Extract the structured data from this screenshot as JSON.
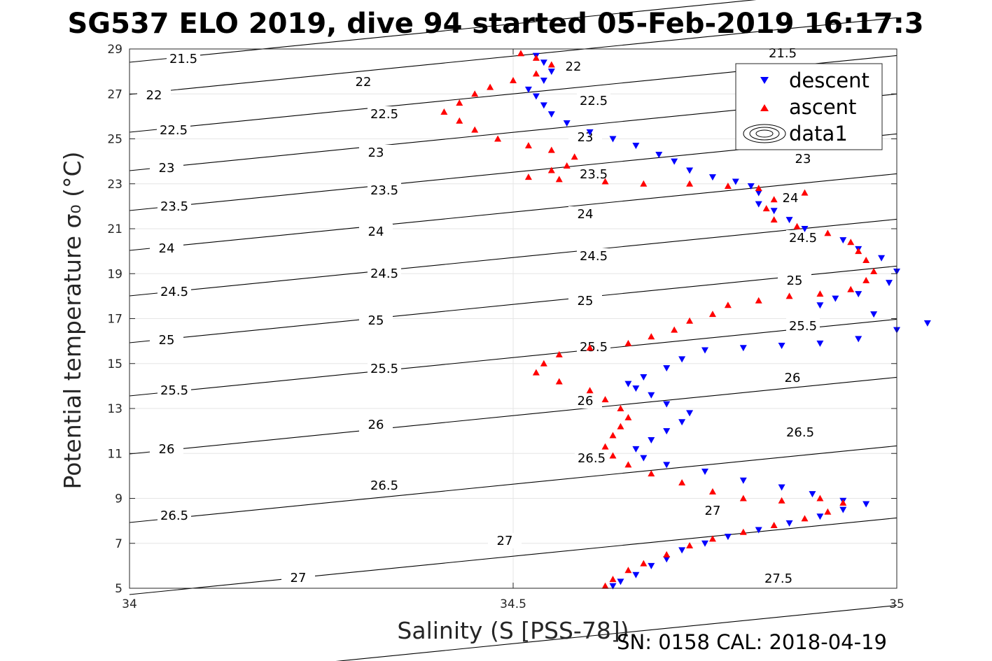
{
  "title": "SG537 ELO 2019, dive 94 started 05-Feb-2019 16:17:3",
  "footer": "SN: 0158  CAL: 2018-04-19",
  "colors": {
    "descent": "#0000ff",
    "ascent": "#ff0000",
    "contour": "#000000",
    "grid": "#e6e6e6"
  },
  "chart_data": {
    "type": "scatter",
    "xlabel": "Salinity (S [PSS-78])",
    "ylabel": "Potential temperature σ₀ (°C)",
    "xlim": [
      34,
      35
    ],
    "ylim": [
      5,
      29
    ],
    "x_ticks": [
      "34",
      "34.5",
      "35"
    ],
    "y_ticks": [
      "5",
      "7",
      "9",
      "11",
      "13",
      "15",
      "17",
      "19",
      "21",
      "23",
      "25",
      "27",
      "29"
    ],
    "grid": true,
    "legend": {
      "placement": "top-right",
      "entries": [
        "descent",
        "ascent",
        "data1"
      ]
    },
    "series": [
      {
        "name": "descent",
        "marker": "triangle-down",
        "points": [
          [
            34.63,
            5.1
          ],
          [
            34.64,
            5.3
          ],
          [
            34.66,
            5.6
          ],
          [
            34.68,
            6.0
          ],
          [
            34.7,
            6.3
          ],
          [
            34.72,
            6.7
          ],
          [
            34.75,
            7.0
          ],
          [
            34.78,
            7.3
          ],
          [
            34.82,
            7.6
          ],
          [
            34.86,
            7.9
          ],
          [
            34.9,
            8.2
          ],
          [
            34.93,
            8.5
          ],
          [
            34.96,
            8.75
          ],
          [
            34.93,
            8.9
          ],
          [
            34.89,
            9.2
          ],
          [
            34.85,
            9.5
          ],
          [
            34.8,
            9.8
          ],
          [
            34.75,
            10.2
          ],
          [
            34.7,
            10.5
          ],
          [
            34.67,
            10.8
          ],
          [
            34.66,
            11.2
          ],
          [
            34.68,
            11.6
          ],
          [
            34.7,
            12.0
          ],
          [
            34.72,
            12.4
          ],
          [
            34.73,
            12.8
          ],
          [
            34.7,
            13.2
          ],
          [
            34.68,
            13.6
          ],
          [
            34.66,
            13.9
          ],
          [
            34.65,
            14.1
          ],
          [
            34.67,
            14.4
          ],
          [
            34.7,
            14.8
          ],
          [
            34.72,
            15.2
          ],
          [
            34.75,
            15.6
          ],
          [
            34.8,
            15.7
          ],
          [
            34.85,
            15.8
          ],
          [
            34.9,
            15.9
          ],
          [
            34.95,
            16.1
          ],
          [
            35.0,
            16.5
          ],
          [
            35.04,
            16.8
          ],
          [
            34.97,
            17.2
          ],
          [
            34.9,
            17.6
          ],
          [
            34.92,
            17.9
          ],
          [
            34.95,
            18.1
          ],
          [
            34.99,
            18.6
          ],
          [
            35.0,
            19.1
          ],
          [
            34.98,
            19.7
          ],
          [
            34.95,
            20.1
          ],
          [
            34.93,
            20.5
          ],
          [
            34.88,
            21.0
          ],
          [
            34.86,
            21.4
          ],
          [
            34.84,
            21.8
          ],
          [
            34.82,
            22.1
          ],
          [
            34.82,
            22.6
          ],
          [
            34.81,
            22.9
          ],
          [
            34.79,
            23.1
          ],
          [
            34.76,
            23.3
          ],
          [
            34.73,
            23.6
          ],
          [
            34.71,
            24.0
          ],
          [
            34.69,
            24.3
          ],
          [
            34.66,
            24.7
          ],
          [
            34.63,
            25.0
          ],
          [
            34.6,
            25.3
          ],
          [
            34.57,
            25.7
          ],
          [
            34.55,
            26.1
          ],
          [
            34.54,
            26.5
          ],
          [
            34.53,
            26.9
          ],
          [
            34.52,
            27.2
          ],
          [
            34.54,
            27.6
          ],
          [
            34.55,
            28.0
          ],
          [
            34.54,
            28.4
          ],
          [
            34.53,
            28.7
          ]
        ]
      },
      {
        "name": "ascent",
        "marker": "triangle-up",
        "points": [
          [
            34.62,
            5.1
          ],
          [
            34.63,
            5.4
          ],
          [
            34.65,
            5.8
          ],
          [
            34.67,
            6.1
          ],
          [
            34.7,
            6.5
          ],
          [
            34.73,
            6.9
          ],
          [
            34.76,
            7.2
          ],
          [
            34.8,
            7.5
          ],
          [
            34.84,
            7.8
          ],
          [
            34.88,
            8.1
          ],
          [
            34.91,
            8.4
          ],
          [
            34.93,
            8.8
          ],
          [
            34.9,
            9.0
          ],
          [
            34.85,
            8.9
          ],
          [
            34.8,
            9.0
          ],
          [
            34.76,
            9.3
          ],
          [
            34.72,
            9.7
          ],
          [
            34.68,
            10.1
          ],
          [
            34.65,
            10.5
          ],
          [
            34.63,
            10.9
          ],
          [
            34.62,
            11.3
          ],
          [
            34.63,
            11.8
          ],
          [
            34.64,
            12.2
          ],
          [
            34.65,
            12.6
          ],
          [
            34.64,
            13.0
          ],
          [
            34.62,
            13.4
          ],
          [
            34.6,
            13.8
          ],
          [
            34.56,
            14.2
          ],
          [
            34.53,
            14.6
          ],
          [
            34.54,
            15.0
          ],
          [
            34.56,
            15.4
          ],
          [
            34.6,
            15.7
          ],
          [
            34.65,
            15.9
          ],
          [
            34.68,
            16.2
          ],
          [
            34.71,
            16.5
          ],
          [
            34.73,
            16.9
          ],
          [
            34.76,
            17.2
          ],
          [
            34.78,
            17.6
          ],
          [
            34.82,
            17.8
          ],
          [
            34.86,
            18.0
          ],
          [
            34.9,
            18.1
          ],
          [
            34.94,
            18.3
          ],
          [
            34.96,
            18.7
          ],
          [
            34.97,
            19.1
          ],
          [
            34.96,
            19.6
          ],
          [
            34.95,
            20.0
          ],
          [
            34.94,
            20.4
          ],
          [
            34.91,
            20.8
          ],
          [
            34.87,
            21.1
          ],
          [
            34.84,
            21.4
          ],
          [
            34.83,
            21.9
          ],
          [
            34.84,
            22.3
          ],
          [
            34.88,
            22.6
          ],
          [
            34.82,
            22.8
          ],
          [
            34.78,
            22.9
          ],
          [
            34.73,
            23.0
          ],
          [
            34.67,
            23.0
          ],
          [
            34.62,
            23.1
          ],
          [
            34.56,
            23.2
          ],
          [
            34.52,
            23.3
          ],
          [
            34.55,
            23.6
          ],
          [
            34.57,
            23.8
          ],
          [
            34.58,
            24.2
          ],
          [
            34.55,
            24.5
          ],
          [
            34.52,
            24.7
          ],
          [
            34.48,
            25.0
          ],
          [
            34.45,
            25.4
          ],
          [
            34.43,
            25.8
          ],
          [
            34.41,
            26.2
          ],
          [
            34.43,
            26.6
          ],
          [
            34.45,
            27.0
          ],
          [
            34.47,
            27.3
          ],
          [
            34.5,
            27.6
          ],
          [
            34.53,
            27.9
          ],
          [
            34.55,
            28.3
          ],
          [
            34.53,
            28.6
          ],
          [
            34.51,
            28.8
          ]
        ]
      }
    ],
    "contours": {
      "name": "data1",
      "labels": [
        "21.5",
        "22",
        "22.5",
        "23",
        "23.5",
        "24",
        "24.5",
        "25",
        "25.5",
        "26",
        "26.5",
        "27",
        "27.5"
      ]
    }
  }
}
